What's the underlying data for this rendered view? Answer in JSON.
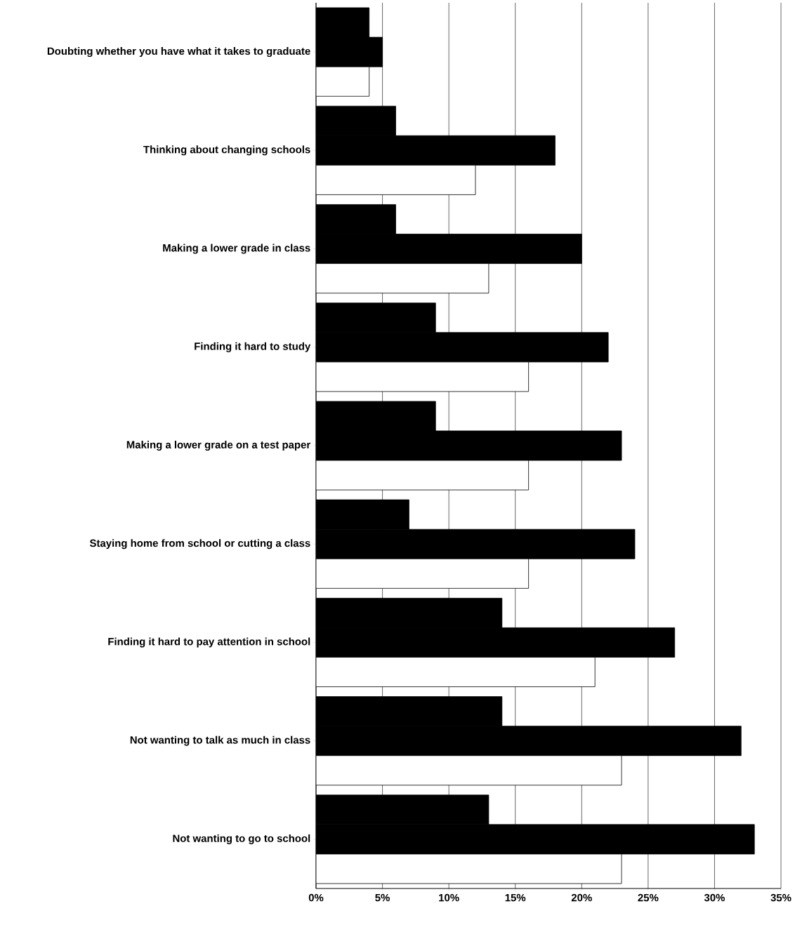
{
  "chart_data": {
    "type": "bar",
    "orientation": "horizontal",
    "categories": [
      "Doubting whether you have what it takes to graduate",
      "Thinking about changing schools",
      "Making a lower grade in class",
      "Finding it hard to study",
      "Making a lower grade on a test paper",
      "Staying home from school or cutting a class",
      "Finding it hard to pay attention in school",
      "Not wanting to talk as much in class",
      "Not wanting to go to school"
    ],
    "series": [
      {
        "color": "#000000",
        "values": [
          4,
          6,
          6,
          9,
          9,
          7,
          14,
          14,
          13
        ]
      },
      {
        "color": "#000000",
        "values": [
          5,
          18,
          20,
          22,
          23,
          24,
          27,
          32,
          33
        ]
      },
      {
        "color": "#ffffff",
        "values": [
          4,
          12,
          13,
          16,
          16,
          16,
          21,
          23,
          23
        ]
      }
    ],
    "xlim": [
      0,
      35
    ],
    "xticks": [
      {
        "value": 0,
        "label": "0%"
      },
      {
        "value": 5,
        "label": "5%"
      },
      {
        "value": 10,
        "label": "10%"
      },
      {
        "value": 15,
        "label": "15%"
      },
      {
        "value": 20,
        "label": "20%"
      },
      {
        "value": 25,
        "label": "25%"
      },
      {
        "value": 30,
        "label": "30%"
      },
      {
        "value": 35,
        "label": "35%"
      }
    ],
    "grid": "x"
  }
}
